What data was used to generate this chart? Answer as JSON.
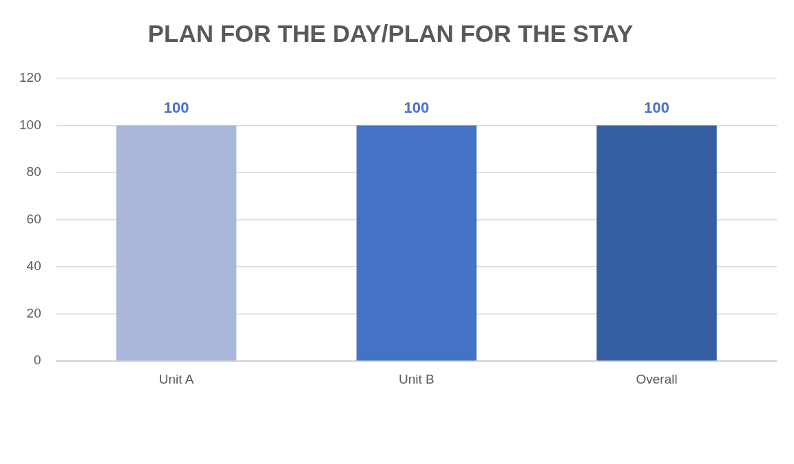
{
  "chart_data": {
    "type": "bar",
    "title": "PLAN FOR THE DAY/PLAN FOR THE STAY",
    "categories": [
      "Unit A",
      "Unit B",
      "Overall"
    ],
    "values": [
      100,
      100,
      100
    ],
    "colors": [
      "#a9b7db",
      "#4472c4",
      "#365fa3"
    ],
    "ylim": [
      0,
      120
    ],
    "yticks": [
      0,
      20,
      40,
      60,
      80,
      100,
      120
    ],
    "grid": "y",
    "data_labels": true
  }
}
